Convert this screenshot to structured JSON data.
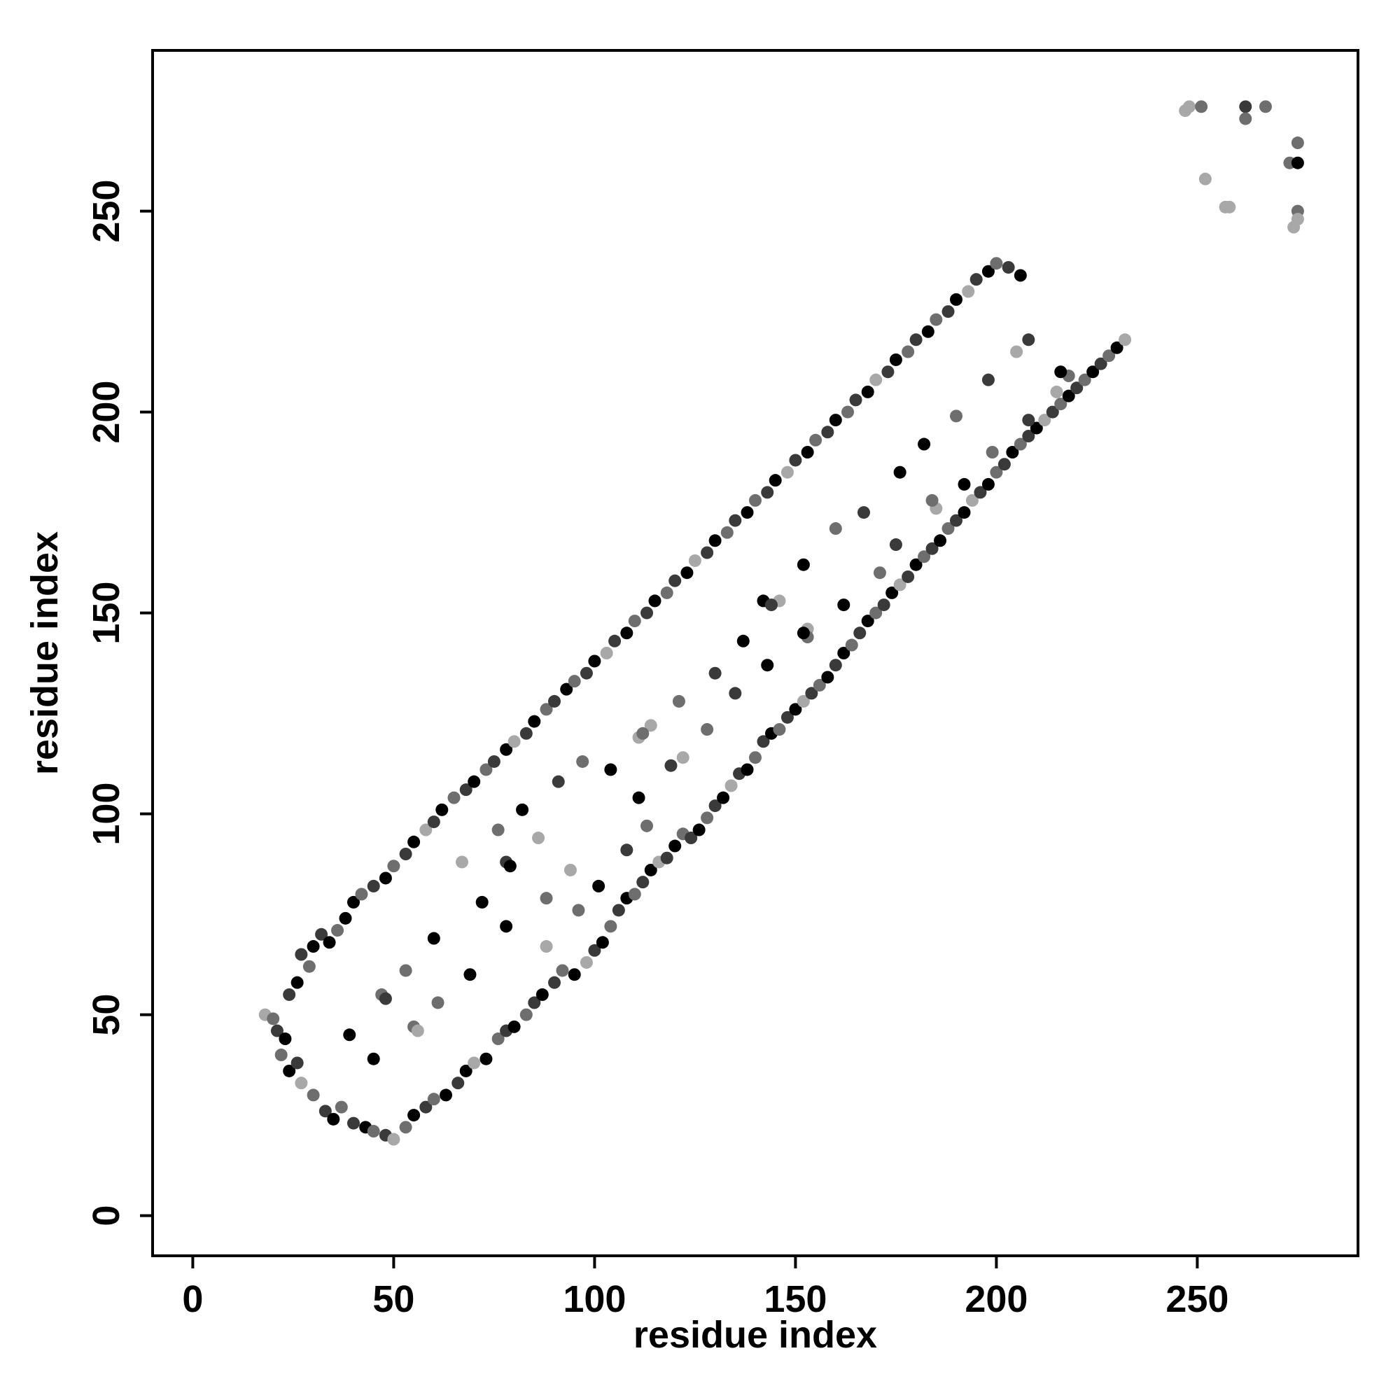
{
  "chart_data": {
    "type": "scatter",
    "title": "",
    "xlabel": "residue index",
    "ylabel": "residue index",
    "xlim": [
      -10,
      290
    ],
    "ylim": [
      -10,
      290
    ],
    "x_ticks": [
      0,
      50,
      100,
      150,
      200,
      250
    ],
    "y_ticks": [
      0,
      50,
      100,
      150,
      200,
      250
    ],
    "x_tick_labels": [
      "0",
      "50",
      "100",
      "150",
      "200",
      "250"
    ],
    "y_tick_labels": [
      "0",
      "50",
      "100",
      "150",
      "200",
      "250"
    ],
    "grid": false,
    "legend": "none",
    "marker_shades": [
      "#000000",
      "#3a3a3a",
      "#6e6e6e",
      "#a8a8a8"
    ],
    "points": [
      [
        18,
        50,
        3
      ],
      [
        20,
        49,
        2
      ],
      [
        21,
        46,
        1
      ],
      [
        23,
        44,
        0
      ],
      [
        24,
        55,
        1
      ],
      [
        26,
        58,
        0
      ],
      [
        27,
        65,
        1
      ],
      [
        29,
        62,
        2
      ],
      [
        30,
        67,
        0
      ],
      [
        32,
        70,
        1
      ],
      [
        34,
        68,
        0
      ],
      [
        36,
        71,
        2
      ],
      [
        38,
        74,
        0
      ],
      [
        22,
        40,
        2
      ],
      [
        24,
        36,
        0
      ],
      [
        26,
        38,
        1
      ],
      [
        27,
        33,
        3
      ],
      [
        30,
        30,
        2
      ],
      [
        33,
        26,
        1
      ],
      [
        35,
        24,
        0
      ],
      [
        37,
        27,
        2
      ],
      [
        40,
        23,
        1
      ],
      [
        43,
        22,
        0
      ],
      [
        45,
        21,
        2
      ],
      [
        48,
        20,
        1
      ],
      [
        50,
        19,
        3
      ],
      [
        53,
        22,
        2
      ],
      [
        55,
        25,
        0
      ],
      [
        58,
        27,
        1
      ],
      [
        60,
        29,
        2
      ],
      [
        63,
        30,
        0
      ],
      [
        66,
        33,
        1
      ],
      [
        68,
        36,
        0
      ],
      [
        70,
        38,
        3
      ],
      [
        73,
        39,
        0
      ],
      [
        76,
        44,
        2
      ],
      [
        78,
        46,
        1
      ],
      [
        80,
        47,
        0
      ],
      [
        83,
        50,
        2
      ],
      [
        85,
        53,
        1
      ],
      [
        87,
        55,
        0
      ],
      [
        90,
        58,
        1
      ],
      [
        92,
        61,
        2
      ],
      [
        95,
        60,
        0
      ],
      [
        98,
        63,
        3
      ],
      [
        100,
        66,
        1
      ],
      [
        102,
        68,
        0
      ],
      [
        104,
        72,
        2
      ],
      [
        106,
        76,
        1
      ],
      [
        108,
        79,
        0
      ],
      [
        110,
        80,
        2
      ],
      [
        112,
        83,
        1
      ],
      [
        114,
        86,
        0
      ],
      [
        116,
        88,
        3
      ],
      [
        118,
        89,
        1
      ],
      [
        120,
        92,
        0
      ],
      [
        122,
        95,
        2
      ],
      [
        124,
        94,
        1
      ],
      [
        126,
        96,
        0
      ],
      [
        128,
        99,
        2
      ],
      [
        130,
        102,
        1
      ],
      [
        132,
        104,
        0
      ],
      [
        134,
        107,
        3
      ],
      [
        136,
        110,
        1
      ],
      [
        138,
        111,
        0
      ],
      [
        140,
        114,
        2
      ],
      [
        142,
        118,
        1
      ],
      [
        144,
        120,
        0
      ],
      [
        146,
        121,
        2
      ],
      [
        148,
        124,
        1
      ],
      [
        150,
        126,
        0
      ],
      [
        152,
        128,
        3
      ],
      [
        154,
        130,
        1
      ],
      [
        156,
        132,
        2
      ],
      [
        158,
        134,
        0
      ],
      [
        160,
        137,
        1
      ],
      [
        162,
        140,
        0
      ],
      [
        164,
        142,
        2
      ],
      [
        166,
        145,
        1
      ],
      [
        168,
        148,
        0
      ],
      [
        170,
        150,
        2
      ],
      [
        172,
        152,
        1
      ],
      [
        174,
        155,
        0
      ],
      [
        176,
        157,
        3
      ],
      [
        178,
        159,
        1
      ],
      [
        180,
        162,
        0
      ],
      [
        182,
        164,
        2
      ],
      [
        184,
        166,
        1
      ],
      [
        186,
        168,
        0
      ],
      [
        188,
        171,
        2
      ],
      [
        190,
        173,
        1
      ],
      [
        192,
        175,
        0
      ],
      [
        194,
        178,
        3
      ],
      [
        196,
        180,
        1
      ],
      [
        198,
        182,
        0
      ],
      [
        200,
        185,
        2
      ],
      [
        202,
        187,
        1
      ],
      [
        204,
        190,
        0
      ],
      [
        206,
        192,
        2
      ],
      [
        208,
        194,
        1
      ],
      [
        210,
        196,
        0
      ],
      [
        212,
        198,
        3
      ],
      [
        214,
        200,
        1
      ],
      [
        216,
        202,
        2
      ],
      [
        218,
        204,
        0
      ],
      [
        220,
        206,
        1
      ],
      [
        222,
        208,
        2
      ],
      [
        224,
        210,
        0
      ],
      [
        226,
        212,
        1
      ],
      [
        228,
        214,
        2
      ],
      [
        230,
        216,
        0
      ],
      [
        232,
        218,
        3
      ],
      [
        40,
        78,
        0
      ],
      [
        42,
        80,
        2
      ],
      [
        45,
        82,
        1
      ],
      [
        48,
        84,
        0
      ],
      [
        50,
        87,
        2
      ],
      [
        53,
        90,
        1
      ],
      [
        55,
        93,
        0
      ],
      [
        58,
        96,
        3
      ],
      [
        60,
        98,
        1
      ],
      [
        62,
        101,
        0
      ],
      [
        65,
        104,
        2
      ],
      [
        68,
        106,
        1
      ],
      [
        70,
        108,
        0
      ],
      [
        73,
        111,
        2
      ],
      [
        75,
        113,
        1
      ],
      [
        78,
        116,
        0
      ],
      [
        80,
        118,
        3
      ],
      [
        83,
        120,
        1
      ],
      [
        85,
        123,
        0
      ],
      [
        88,
        126,
        2
      ],
      [
        90,
        128,
        1
      ],
      [
        93,
        131,
        0
      ],
      [
        95,
        133,
        2
      ],
      [
        98,
        135,
        1
      ],
      [
        100,
        138,
        0
      ],
      [
        103,
        140,
        3
      ],
      [
        105,
        143,
        1
      ],
      [
        108,
        145,
        0
      ],
      [
        110,
        148,
        2
      ],
      [
        113,
        150,
        1
      ],
      [
        115,
        153,
        0
      ],
      [
        118,
        155,
        2
      ],
      [
        120,
        158,
        1
      ],
      [
        123,
        160,
        0
      ],
      [
        125,
        163,
        3
      ],
      [
        128,
        165,
        1
      ],
      [
        130,
        168,
        0
      ],
      [
        133,
        170,
        2
      ],
      [
        135,
        173,
        1
      ],
      [
        138,
        175,
        0
      ],
      [
        140,
        178,
        2
      ],
      [
        143,
        180,
        1
      ],
      [
        145,
        183,
        0
      ],
      [
        148,
        185,
        3
      ],
      [
        150,
        188,
        1
      ],
      [
        153,
        190,
        0
      ],
      [
        155,
        193,
        2
      ],
      [
        158,
        195,
        1
      ],
      [
        160,
        198,
        0
      ],
      [
        163,
        200,
        2
      ],
      [
        165,
        203,
        1
      ],
      [
        168,
        205,
        0
      ],
      [
        170,
        208,
        3
      ],
      [
        173,
        210,
        1
      ],
      [
        175,
        213,
        0
      ],
      [
        178,
        215,
        2
      ],
      [
        180,
        218,
        1
      ],
      [
        183,
        220,
        0
      ],
      [
        185,
        223,
        2
      ],
      [
        188,
        225,
        1
      ],
      [
        190,
        228,
        0
      ],
      [
        193,
        230,
        3
      ],
      [
        195,
        233,
        1
      ],
      [
        198,
        235,
        0
      ],
      [
        200,
        237,
        2
      ],
      [
        203,
        236,
        1
      ],
      [
        206,
        234,
        0
      ],
      [
        39,
        45,
        0
      ],
      [
        45,
        39,
        0
      ],
      [
        53,
        61,
        2
      ],
      [
        61,
        53,
        2
      ],
      [
        60,
        69,
        0
      ],
      [
        69,
        60,
        0
      ],
      [
        72,
        78,
        0
      ],
      [
        78,
        72,
        0
      ],
      [
        67,
        88,
        3
      ],
      [
        88,
        67,
        3
      ],
      [
        76,
        96,
        2
      ],
      [
        96,
        76,
        2
      ],
      [
        86,
        94,
        3
      ],
      [
        94,
        86,
        3
      ],
      [
        82,
        101,
        0
      ],
      [
        101,
        82,
        0
      ],
      [
        91,
        108,
        1
      ],
      [
        108,
        91,
        1
      ],
      [
        97,
        113,
        2
      ],
      [
        113,
        97,
        2
      ],
      [
        104,
        111,
        0
      ],
      [
        111,
        104,
        0
      ],
      [
        114,
        122,
        3
      ],
      [
        122,
        114,
        3
      ],
      [
        121,
        128,
        2
      ],
      [
        128,
        121,
        2
      ],
      [
        130,
        135,
        1
      ],
      [
        135,
        130,
        1
      ],
      [
        137,
        143,
        0
      ],
      [
        143,
        137,
        0
      ],
      [
        146,
        153,
        3
      ],
      [
        153,
        146,
        3
      ],
      [
        152,
        162,
        0
      ],
      [
        162,
        152,
        0
      ],
      [
        160,
        171,
        2
      ],
      [
        171,
        160,
        2
      ],
      [
        167,
        175,
        1
      ],
      [
        175,
        167,
        1
      ],
      [
        176,
        185,
        3
      ],
      [
        185,
        176,
        3
      ],
      [
        182,
        192,
        0
      ],
      [
        192,
        182,
        0
      ],
      [
        190,
        199,
        2
      ],
      [
        199,
        190,
        2
      ],
      [
        198,
        208,
        1
      ],
      [
        208,
        198,
        1
      ],
      [
        205,
        215,
        3
      ],
      [
        215,
        205,
        3
      ],
      [
        47,
        55,
        2
      ],
      [
        48,
        54,
        1
      ],
      [
        55,
        47,
        2
      ],
      [
        56,
        46,
        3
      ],
      [
        78,
        88,
        1
      ],
      [
        88,
        79,
        2
      ],
      [
        79,
        87,
        0
      ],
      [
        111,
        119,
        3
      ],
      [
        119,
        112,
        1
      ],
      [
        112,
        120,
        2
      ],
      [
        142,
        153,
        0
      ],
      [
        144,
        152,
        1
      ],
      [
        153,
        144,
        2
      ],
      [
        152,
        145,
        0
      ],
      [
        176,
        185,
        0
      ],
      [
        184,
        178,
        2
      ],
      [
        208,
        218,
        1
      ],
      [
        218,
        209,
        2
      ],
      [
        216,
        210,
        0
      ],
      [
        247,
        275,
        3
      ],
      [
        248,
        276,
        3
      ],
      [
        251,
        276,
        2
      ],
      [
        252,
        258,
        3
      ],
      [
        257,
        251,
        3
      ],
      [
        258,
        251,
        3
      ],
      [
        262,
        276,
        1
      ],
      [
        262,
        273,
        2
      ],
      [
        267,
        276,
        2
      ],
      [
        273,
        262,
        2
      ],
      [
        275,
        262,
        0
      ],
      [
        275,
        267,
        2
      ],
      [
        275,
        250,
        2
      ],
      [
        275,
        248,
        3
      ],
      [
        274,
        246,
        3
      ]
    ]
  }
}
